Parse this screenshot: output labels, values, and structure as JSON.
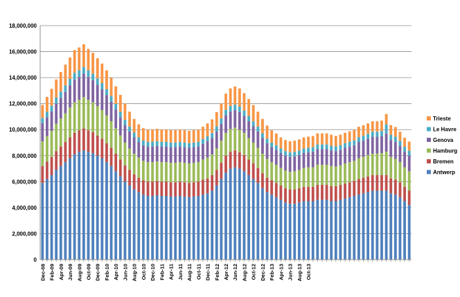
{
  "chart_data": {
    "type": "bar",
    "stacked": true,
    "ylim": [
      0,
      18000000
    ],
    "yticks": [
      "0",
      "2,000,000",
      "4,000,000",
      "6,000,000",
      "8,000,000",
      "10,000,000",
      "12,000,000",
      "14,000,000",
      "16,000,000",
      "18,000,000"
    ],
    "ytick_values": [
      0,
      2000000,
      4000000,
      6000000,
      8000000,
      10000000,
      12000000,
      14000000,
      16000000,
      18000000
    ],
    "xtick_labels": [
      "Dec-08",
      "Feb-09",
      "Apr-09",
      "Jun-09",
      "Aug-09",
      "Oct-09",
      "Dec-09",
      "Feb-10",
      "Apr-10",
      "Jun-10",
      "Aug-10",
      "Oct-10",
      "Dec-10",
      "Feb-11",
      "Apr-11",
      "Jun-11",
      "Aug-11",
      "Oct-11",
      "Dec-11",
      "Feb-12",
      "Apr-12",
      "Jun-12",
      "Aug-12",
      "Oct-12",
      "Dec-12",
      "Feb-13",
      "Apr-13",
      "Jun-13",
      "Aug-13",
      "Oct-13"
    ],
    "grid": "horizontal",
    "legend_position": "right",
    "series_colors": {
      "Antwerp": "#4f81bd",
      "Bremen": "#c0504d",
      "Hamburg": "#9bbb59",
      "Genova": "#8064a2",
      "Le Havre": "#4bacc6",
      "Trieste": "#f79646"
    },
    "series": [
      {
        "name": "Antwerp",
        "values": [
          5900000,
          6200000,
          6500000,
          6900000,
          7200000,
          7500000,
          7800000,
          8100000,
          8300000,
          8400000,
          8300000,
          8200000,
          8000000,
          7800000,
          7500000,
          7200000,
          6800000,
          6400000,
          6000000,
          5700000,
          5400000,
          5200000,
          5000000,
          4900000,
          4900000,
          4950000,
          4900000,
          4900000,
          4850000,
          4850000,
          4900000,
          4850000,
          4800000,
          4850000,
          4900000,
          5000000,
          5100000,
          5300000,
          5700000,
          6200000,
          6700000,
          7000000,
          7100000,
          7000000,
          6800000,
          6500000,
          6200000,
          5900000,
          5500000,
          5200000,
          5000000,
          4800000,
          4600000,
          4400000,
          4300000,
          4300000,
          4400000,
          4500000,
          4500000,
          4500000,
          4600000,
          4600000,
          4600000,
          4500000,
          4500000,
          4600000,
          4700000,
          4800000,
          4900000,
          5000000,
          5100000,
          5200000,
          5300000,
          5300000,
          5300000,
          5300000,
          5100000,
          5000000,
          4800000,
          4500000,
          4200000
        ]
      },
      {
        "name": "Bremen",
        "values": [
          1300000,
          1350000,
          1400000,
          1450000,
          1500000,
          1550000,
          1600000,
          1650000,
          1650000,
          1700000,
          1650000,
          1600000,
          1550000,
          1500000,
          1450000,
          1400000,
          1350000,
          1300000,
          1250000,
          1200000,
          1150000,
          1100000,
          1100000,
          1100000,
          1100000,
          1100000,
          1100000,
          1100000,
          1100000,
          1100000,
          1100000,
          1100000,
          1100000,
          1100000,
          1100000,
          1150000,
          1150000,
          1200000,
          1200000,
          1250000,
          1300000,
          1300000,
          1300000,
          1250000,
          1250000,
          1200000,
          1200000,
          1150000,
          1150000,
          1100000,
          1100000,
          1100000,
          1100000,
          1100000,
          1100000,
          1100000,
          1100000,
          1100000,
          1100000,
          1100000,
          1150000,
          1150000,
          1150000,
          1150000,
          1150000,
          1150000,
          1150000,
          1150000,
          1150000,
          1200000,
          1200000,
          1200000,
          1200000,
          1200000,
          1200000,
          1200000,
          1150000,
          1150000,
          1150000,
          1100000,
          1100000
        ]
      },
      {
        "name": "Hamburg",
        "values": [
          1900000,
          1950000,
          2000000,
          2100000,
          2150000,
          2200000,
          2300000,
          2350000,
          2350000,
          2400000,
          2350000,
          2300000,
          2250000,
          2200000,
          2150000,
          2050000,
          1950000,
          1850000,
          1750000,
          1650000,
          1600000,
          1550000,
          1500000,
          1500000,
          1500000,
          1500000,
          1500000,
          1500000,
          1500000,
          1500000,
          1500000,
          1500000,
          1500000,
          1500000,
          1500000,
          1550000,
          1600000,
          1600000,
          1650000,
          1700000,
          1750000,
          1750000,
          1750000,
          1750000,
          1700000,
          1650000,
          1600000,
          1550000,
          1500000,
          1450000,
          1400000,
          1400000,
          1350000,
          1350000,
          1350000,
          1400000,
          1400000,
          1450000,
          1500000,
          1500000,
          1550000,
          1550000,
          1550000,
          1550000,
          1500000,
          1500000,
          1550000,
          1550000,
          1550000,
          1600000,
          1600000,
          1650000,
          1650000,
          1650000,
          1700000,
          1800000,
          1650000,
          1600000,
          1550000,
          1500000,
          1500000
        ]
      },
      {
        "name": "Genova",
        "values": [
          1400000,
          1450000,
          1500000,
          1550000,
          1600000,
          1650000,
          1700000,
          1750000,
          1750000,
          1800000,
          1750000,
          1700000,
          1650000,
          1600000,
          1550000,
          1500000,
          1450000,
          1400000,
          1350000,
          1300000,
          1250000,
          1200000,
          1200000,
          1200000,
          1200000,
          1200000,
          1200000,
          1200000,
          1200000,
          1200000,
          1200000,
          1200000,
          1200000,
          1200000,
          1200000,
          1200000,
          1250000,
          1250000,
          1300000,
          1300000,
          1350000,
          1350000,
          1350000,
          1350000,
          1300000,
          1300000,
          1250000,
          1250000,
          1200000,
          1200000,
          1150000,
          1150000,
          1150000,
          1150000,
          1150000,
          1150000,
          1150000,
          1150000,
          1150000,
          1200000,
          1200000,
          1200000,
          1200000,
          1200000,
          1200000,
          1200000,
          1200000,
          1200000,
          1200000,
          1250000,
          1250000,
          1250000,
          1300000,
          1300000,
          1300000,
          1400000,
          1300000,
          1300000,
          1250000,
          1200000,
          1200000
        ]
      },
      {
        "name": "Le Havre",
        "values": [
          400000,
          420000,
          440000,
          460000,
          480000,
          500000,
          500000,
          520000,
          520000,
          520000,
          510000,
          500000,
          490000,
          480000,
          460000,
          440000,
          430000,
          420000,
          400000,
          380000,
          370000,
          360000,
          360000,
          360000,
          360000,
          360000,
          360000,
          360000,
          360000,
          360000,
          360000,
          360000,
          360000,
          360000,
          360000,
          370000,
          380000,
          390000,
          400000,
          410000,
          420000,
          420000,
          420000,
          420000,
          410000,
          400000,
          390000,
          380000,
          370000,
          360000,
          350000,
          350000,
          350000,
          350000,
          350000,
          350000,
          350000,
          350000,
          360000,
          360000,
          360000,
          360000,
          360000,
          360000,
          360000,
          360000,
          360000,
          370000,
          370000,
          370000,
          380000,
          380000,
          390000,
          390000,
          390000,
          700000,
          400000,
          400000,
          390000,
          380000,
          380000
        ]
      },
      {
        "name": "Trieste",
        "values": [
          1000000,
          1150000,
          1300000,
          1400000,
          1500000,
          1600000,
          1650000,
          1750000,
          1750000,
          1750000,
          1650000,
          1600000,
          1550000,
          1500000,
          1450000,
          1400000,
          1350000,
          1300000,
          1250000,
          1150000,
          1050000,
          1000000,
          950000,
          950000,
          950000,
          950000,
          950000,
          950000,
          950000,
          950000,
          950000,
          950000,
          950000,
          950000,
          950000,
          950000,
          1000000,
          1050000,
          1100000,
          1150000,
          1250000,
          1350000,
          1400000,
          1400000,
          1350000,
          1300000,
          1250000,
          1150000,
          1100000,
          1000000,
          950000,
          900000,
          850000,
          850000,
          850000,
          850000,
          850000,
          850000,
          850000,
          850000,
          850000,
          850000,
          850000,
          850000,
          800000,
          800000,
          800000,
          800000,
          800000,
          800000,
          800000,
          800000,
          800000,
          800000,
          800000,
          800000,
          750000,
          750000,
          700000,
          700000,
          700000
        ]
      }
    ]
  }
}
